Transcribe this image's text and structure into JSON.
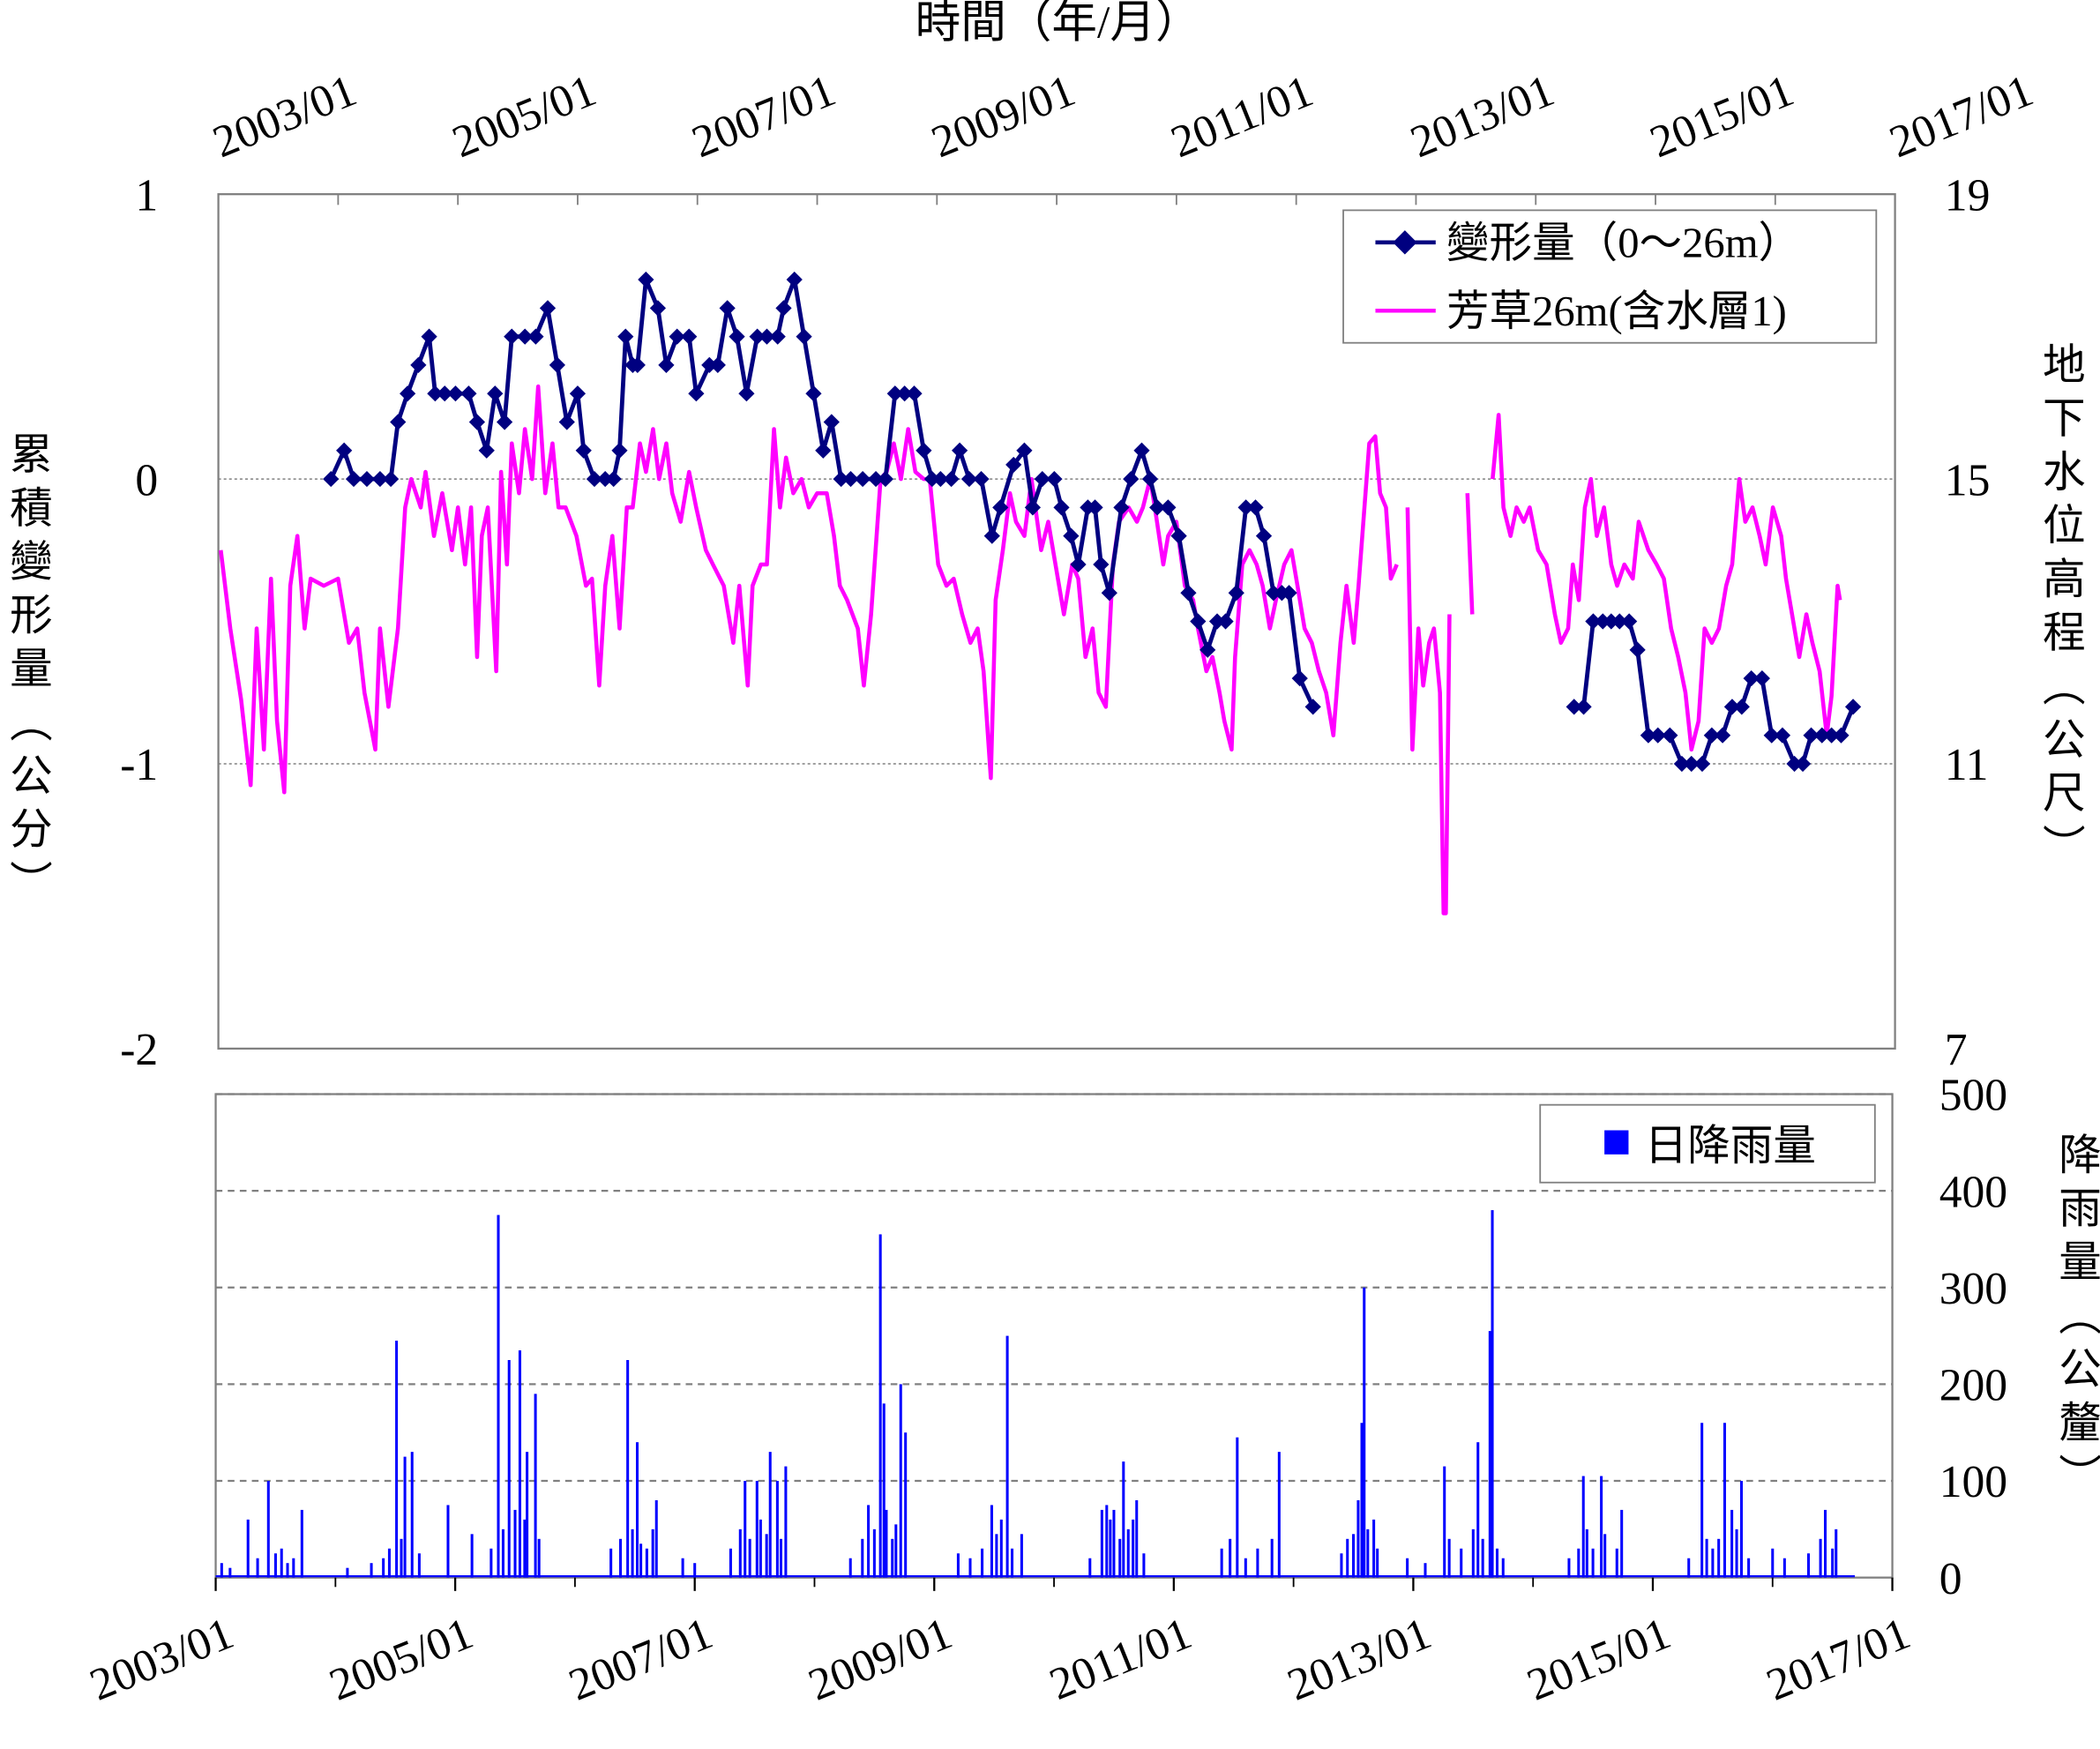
{
  "chart_data": [
    {
      "type": "line",
      "title": "",
      "top_axis_title": "時間（年/月）",
      "ylabel": "累積變形量（公分）",
      "y2label": "地下水位高程（公尺）",
      "x_unit": "years since 2003/01",
      "xlim": [
        0,
        14
      ],
      "ylim": [
        -2,
        1
      ],
      "y2lim": [
        7,
        19
      ],
      "x_tick_labels": [
        "2003/01",
        "2005/01",
        "2007/01",
        "2009/01",
        "2011/01",
        "2013/01",
        "2015/01",
        "2017/01"
      ],
      "y_tick_labels": [
        "1",
        "0",
        "-1",
        "-2"
      ],
      "y2_tick_labels": [
        "19",
        "15",
        "11",
        "7"
      ],
      "grid": "horizontal dotted at 0 and -1",
      "legend_position": "top-right",
      "series": [
        {
          "name": "變形量（0～26m）",
          "color": "#000080",
          "marker": "diamond",
          "axis": "left",
          "x": [
            0.94,
            1.05,
            1.13,
            1.24,
            1.35,
            1.44,
            1.5,
            1.58,
            1.67,
            1.76,
            1.81,
            1.89,
            1.98,
            2.09,
            2.16,
            2.24,
            2.31,
            2.39,
            2.45,
            2.56,
            2.65,
            2.75,
            2.83,
            2.91,
            3.0,
            3.05,
            3.14,
            3.23,
            3.3,
            3.35,
            3.4,
            3.46,
            3.5,
            3.57,
            3.67,
            3.74,
            3.83,
            3.93,
            3.99,
            4.1,
            4.17,
            4.25,
            4.33,
            4.41,
            4.5,
            4.58,
            4.67,
            4.72,
            4.81,
            4.89,
            4.97,
            5.05,
            5.12,
            5.2,
            5.28,
            5.38,
            5.49,
            5.57,
            5.65,
            5.73,
            5.81,
            5.89,
            5.96,
            6.03,
            6.12,
            6.19,
            6.27,
            6.37,
            6.46,
            6.53,
            6.64,
            6.73,
            6.8,
            6.88,
            6.98,
            7.04,
            7.12,
            7.18,
            7.26,
            7.32,
            7.37,
            7.44,
            7.54,
            7.62,
            7.71,
            7.78,
            7.84,
            7.93,
            8.02,
            8.1,
            8.18,
            8.26,
            8.34,
            8.41,
            8.5,
            8.58,
            8.66,
            8.73,
            8.81,
            8.88,
            8.94,
            9.03,
            9.14,
            null,
            11.32,
            11.4,
            11.48,
            11.56,
            11.63,
            11.7,
            11.78,
            11.85,
            11.94,
            12.02,
            12.12,
            12.22,
            12.3,
            12.39,
            12.47,
            12.56,
            12.64,
            12.72,
            12.8,
            12.89,
            12.97,
            13.06,
            13.16,
            13.23,
            13.3,
            13.39,
            13.47,
            13.55,
            13.65
          ],
          "y": [
            0,
            0.1,
            0,
            0,
            0,
            0,
            0.2,
            0.3,
            0.4,
            0.5,
            0.3,
            0.3,
            0.3,
            0.3,
            0.2,
            0.1,
            0.3,
            0.2,
            0.5,
            0.5,
            0.5,
            0.6,
            0.4,
            0.2,
            0.3,
            0.1,
            0,
            0,
            0,
            0.1,
            0.5,
            0.4,
            0.4,
            0.7,
            0.6,
            0.4,
            0.5,
            0.5,
            0.3,
            0.4,
            0.4,
            0.6,
            0.5,
            0.3,
            0.5,
            0.5,
            0.5,
            0.6,
            0.7,
            0.5,
            0.3,
            0.1,
            0.2,
            0,
            0,
            0,
            0,
            0,
            0.3,
            0.3,
            0.3,
            0.1,
            0,
            0,
            0,
            0.1,
            0,
            0,
            -0.2,
            -0.1,
            0.05,
            0.1,
            -0.1,
            0,
            0,
            -0.1,
            -0.2,
            -0.3,
            -0.1,
            -0.1,
            -0.3,
            -0.4,
            -0.1,
            0,
            0.1,
            0,
            -0.1,
            -0.1,
            -0.2,
            -0.4,
            -0.5,
            -0.6,
            -0.5,
            -0.5,
            -0.4,
            -0.1,
            -0.1,
            -0.2,
            -0.4,
            -0.4,
            -0.4,
            -0.7,
            -0.8,
            null,
            -0.8,
            -0.8,
            -0.5,
            -0.5,
            -0.5,
            -0.5,
            -0.5,
            -0.6,
            -0.9,
            -0.9,
            -0.9,
            -1,
            -1,
            -1,
            -0.9,
            -0.9,
            -0.8,
            -0.8,
            -0.7,
            -0.7,
            -0.9,
            -0.9,
            -1,
            -1,
            -0.9,
            -0.9,
            -0.9,
            -0.9,
            -0.8
          ]
        },
        {
          "name": "芳草26m(含水層1)",
          "color": "#FF00FF",
          "marker": "none",
          "axis": "right",
          "x": [
            0.02,
            0.1,
            0.19,
            0.27,
            0.32,
            0.38,
            0.44,
            0.49,
            0.55,
            0.6,
            0.66,
            0.72,
            0.77,
            0.88,
            1.0,
            1.09,
            1.16,
            1.22,
            1.31,
            1.35,
            1.42,
            1.5,
            1.56,
            1.61,
            1.69,
            1.73,
            1.8,
            1.87,
            1.95,
            2.0,
            2.06,
            2.11,
            2.16,
            2.2,
            2.25,
            2.32,
            2.36,
            2.41,
            2.45,
            2.51,
            2.56,
            2.62,
            2.67,
            2.73,
            2.79,
            2.84,
            2.9,
            2.99,
            3.07,
            3.12,
            3.18,
            3.23,
            3.29,
            3.35,
            3.41,
            3.46,
            3.52,
            3.57,
            3.63,
            3.68,
            3.74,
            3.79,
            3.86,
            3.93,
            3.99,
            4.07,
            4.13,
            4.22,
            4.3,
            4.35,
            4.42,
            4.46,
            4.53,
            4.58,
            4.64,
            4.69,
            4.74,
            4.8,
            4.87,
            4.93,
            5.0,
            5.08,
            5.14,
            5.19,
            5.25,
            5.34,
            5.39,
            5.45,
            5.53,
            5.58,
            5.64,
            5.7,
            5.76,
            5.82,
            5.89,
            5.94,
            6.01,
            6.08,
            6.14,
            6.21,
            6.28,
            6.34,
            6.39,
            6.45,
            6.49,
            6.55,
            6.61,
            6.66,
            6.73,
            6.79,
            6.87,
            6.93,
            6.99,
            7.06,
            7.13,
            7.18,
            7.24,
            7.3,
            7.35,
            7.41,
            7.47,
            7.52,
            7.6,
            7.67,
            7.72,
            7.78,
            7.82,
            7.89,
            7.93,
            8.0,
            8.07,
            8.14,
            8.18,
            8.25,
            8.3,
            8.36,
            8.4,
            8.46,
            8.49,
            8.55,
            8.61,
            8.67,
            8.72,
            8.78,
            8.83,
            8.9,
            8.96,
            9.01,
            9.07,
            9.13,
            9.19,
            9.25,
            9.31,
            9.37,
            9.42,
            9.48,
            9.52,
            9.57,
            9.61,
            9.66,
            9.7,
            9.75,
            9.79,
            9.84,
            null,
            9.93,
            9.97,
            10.02,
            10.06,
            10.11,
            10.15,
            10.2,
            10.23,
            10.25,
            10.28,
            null,
            10.43,
            10.47,
            null,
            10.64,
            10.69,
            10.73,
            10.79,
            10.84,
            10.9,
            10.95,
            11.02,
            11.09,
            11.16,
            11.21,
            11.27,
            11.31,
            11.36,
            11.41,
            11.46,
            11.51,
            11.57,
            11.63,
            11.68,
            11.74,
            11.81,
            11.86,
            11.94,
            12.01,
            12.07,
            12.13,
            12.19,
            12.25,
            12.3,
            12.36,
            12.41,
            12.47,
            12.53,
            12.59,
            12.64,
            12.7,
            12.75,
            12.81,
            12.87,
            12.92,
            12.98,
            13.05,
            13.09,
            13.16,
            13.2,
            13.26,
            13.31,
            13.37,
            13.43,
            13.47,
            13.52,
            13.54
          ],
          "y": [
            14.0,
            12.9,
            11.9,
            10.7,
            12.9,
            11.2,
            13.6,
            11.6,
            10.6,
            13.5,
            14.2,
            12.9,
            13.6,
            13.5,
            13.6,
            12.7,
            12.9,
            12.0,
            11.2,
            12.9,
            11.8,
            12.9,
            14.6,
            15.0,
            14.6,
            15.1,
            14.2,
            14.8,
            14.0,
            14.6,
            13.8,
            14.6,
            12.5,
            14.2,
            14.6,
            12.3,
            15.1,
            13.8,
            15.5,
            14.8,
            15.7,
            15.0,
            16.3,
            14.8,
            15.5,
            14.6,
            14.6,
            14.2,
            13.5,
            13.6,
            12.1,
            13.5,
            14.2,
            12.9,
            14.6,
            14.6,
            15.5,
            15.1,
            15.7,
            15.0,
            15.5,
            14.8,
            14.4,
            15.1,
            14.6,
            14.0,
            13.8,
            13.5,
            12.7,
            13.5,
            12.1,
            13.5,
            13.8,
            13.8,
            15.7,
            14.6,
            15.3,
            14.8,
            15.0,
            14.6,
            14.8,
            14.8,
            14.2,
            13.5,
            13.3,
            12.9,
            12.1,
            13.1,
            15.0,
            15.1,
            15.5,
            15.0,
            15.7,
            15.1,
            15.0,
            15.0,
            13.8,
            13.5,
            13.6,
            13.1,
            12.7,
            12.9,
            12.3,
            10.8,
            13.3,
            14.0,
            14.8,
            14.4,
            14.2,
            15.0,
            14.0,
            14.4,
            13.8,
            13.1,
            13.8,
            13.6,
            12.5,
            12.9,
            12.0,
            11.8,
            13.8,
            14.4,
            14.6,
            14.4,
            14.6,
            15.0,
            14.6,
            13.8,
            14.2,
            14.4,
            13.5,
            13.3,
            12.9,
            12.3,
            12.5,
            12.0,
            11.6,
            11.2,
            12.5,
            13.8,
            14.0,
            13.8,
            13.5,
            12.9,
            13.3,
            13.8,
            14.0,
            13.5,
            12.9,
            12.7,
            12.3,
            12.0,
            11.4,
            12.7,
            13.5,
            12.7,
            13.5,
            14.6,
            15.5,
            15.6,
            14.8,
            14.6,
            13.6,
            13.8,
            null,
            14.6,
            11.2,
            12.9,
            12.1,
            12.7,
            12.9,
            12.0,
            8.9,
            8.9,
            13.1,
            null,
            14.8,
            13.1,
            null,
            15.0,
            15.9,
            14.6,
            14.2,
            14.6,
            14.4,
            14.6,
            14.0,
            13.8,
            13.1,
            12.7,
            12.9,
            13.8,
            13.3,
            14.6,
            15.0,
            14.2,
            14.6,
            13.8,
            13.5,
            13.8,
            13.6,
            14.4,
            14.0,
            13.8,
            13.6,
            12.9,
            12.5,
            12.0,
            11.2,
            11.6,
            12.9,
            12.7,
            12.9,
            13.5,
            13.8,
            15.0,
            14.4,
            14.6,
            14.2,
            13.8,
            14.6,
            14.2,
            13.6,
            12.9,
            12.5,
            13.1,
            12.7,
            12.3,
            11.4,
            11.95,
            13.5,
            13.3
          ]
        }
      ]
    },
    {
      "type": "bar",
      "title": "",
      "y2label": "降雨量（公釐）",
      "x_unit": "years since 2003/01",
      "xlim": [
        0,
        14
      ],
      "ylim": [
        0,
        500
      ],
      "x_tick_labels": [
        "2003/01",
        "2005/01",
        "2007/01",
        "2009/01",
        "2011/01",
        "2013/01",
        "2015/01",
        "2017/01"
      ],
      "y_tick_labels": [
        "500",
        "400",
        "300",
        "200",
        "100",
        "0"
      ],
      "grid": "horizontal dashed every 100",
      "legend_position": "top-right",
      "series": [
        {
          "name": "日降雨量",
          "color": "#0000FF",
          "x": [
            0.27,
            0.44,
            0.55,
            0.72,
            1.51,
            1.58,
            1.64,
            1.94,
            2.14,
            2.36,
            2.45,
            2.54,
            2.6,
            2.67,
            3.44,
            3.52,
            3.68,
            4.42,
            4.52,
            4.63,
            4.69,
            4.76,
            5.45,
            5.55,
            5.58,
            5.72,
            5.76,
            6.48,
            6.61,
            6.73,
            7.44,
            7.58,
            7.69,
            8.53,
            8.88,
            9.57,
            9.59,
            9.67,
            10.26,
            10.54,
            10.64,
            10.66,
            11.42,
            11.57,
            11.74,
            12.41,
            12.6,
            12.66,
            12.74,
            13.44,
            13.53,
            0.05,
            0.12,
            0.35,
            0.5,
            0.6,
            0.65,
            1.1,
            1.3,
            1.4,
            1.45,
            1.55,
            1.7,
            2.3,
            2.4,
            2.5,
            2.58,
            2.7,
            3.3,
            3.38,
            3.48,
            3.55,
            3.6,
            3.65,
            3.9,
            4.0,
            4.3,
            4.38,
            4.46,
            4.55,
            4.6,
            4.72,
            5.3,
            5.4,
            5.5,
            5.6,
            5.65,
            5.68,
            6.2,
            6.3,
            6.4,
            6.52,
            6.56,
            6.65,
            7.3,
            7.4,
            7.47,
            7.5,
            7.55,
            7.62,
            7.66,
            7.75,
            8.4,
            8.47,
            8.6,
            8.7,
            8.82,
            9.4,
            9.45,
            9.5,
            9.54,
            9.62,
            9.7,
            9.95,
            10.1,
            10.3,
            10.4,
            10.5,
            10.58,
            10.7,
            10.75,
            11.3,
            11.38,
            11.45,
            11.5,
            11.6,
            11.7,
            12.3,
            12.45,
            12.5,
            12.55,
            12.7,
            12.8,
            13.0,
            13.1,
            13.3,
            13.4,
            13.5
          ],
          "values": [
            60,
            100,
            30,
            70,
            245,
            125,
            130,
            75,
            45,
            375,
            225,
            235,
            130,
            190,
            225,
            140,
            80,
            100,
            100,
            130,
            100,
            115,
            75,
            355,
            180,
            200,
            150,
            75,
            250,
            45,
            75,
            120,
            80,
            145,
            130,
            160,
            300,
            60,
            115,
            140,
            255,
            380,
            105,
            105,
            70,
            160,
            160,
            70,
            100,
            70,
            50,
            15,
            10,
            20,
            25,
            15,
            20,
            10,
            15,
            20,
            30,
            40,
            25,
            30,
            50,
            70,
            60,
            40,
            30,
            40,
            50,
            35,
            30,
            50,
            20,
            15,
            30,
            50,
            40,
            60,
            45,
            40,
            20,
            40,
            50,
            70,
            40,
            55,
            25,
            20,
            30,
            45,
            60,
            30,
            20,
            70,
            60,
            70,
            40,
            50,
            60,
            25,
            30,
            40,
            20,
            30,
            40,
            25,
            40,
            45,
            80,
            50,
            30,
            20,
            15,
            40,
            30,
            50,
            40,
            30,
            20,
            20,
            30,
            50,
            30,
            45,
            30,
            20,
            40,
            30,
            40,
            50,
            20,
            30,
            20,
            25,
            40,
            30
          ]
        }
      ]
    }
  ]
}
